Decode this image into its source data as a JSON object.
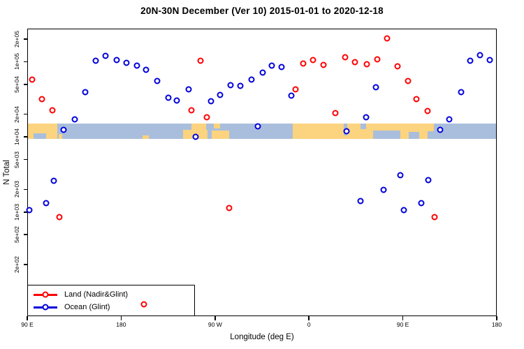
{
  "title": "20N-30N December (Ver 10)   2015-01-01 to 2020-12-18",
  "chart_data": {
    "type": "scatter",
    "title": "20N-30N December (Ver 10)   2015-01-01 to 2020-12-18",
    "xlabel": "Longitude (deg E)",
    "ylabel": "N Total",
    "x_axis": {
      "note": "t = degrees eastward along axis starting at 90E; axis wraps 90E to 180 to 90W to 0 to 90E to 180",
      "range_t": [
        0,
        450
      ],
      "ticks_t": [
        0,
        90,
        180,
        270,
        360,
        450
      ],
      "tick_labels": [
        "90 E",
        "180",
        "90 W",
        "0",
        "90 E",
        "180"
      ]
    },
    "y_axis": {
      "scale": "log",
      "range": [
        41,
        274000
      ],
      "tick_values": [
        200000,
        100000,
        50000,
        20000,
        10000,
        5000,
        2000,
        1000,
        500,
        200
      ],
      "tick_labels": [
        "2e+05",
        "1e+05",
        "5e+04",
        "2e+04",
        "1e+04",
        "5e+03",
        "2e+03",
        "1e+03",
        "5e+02",
        "2e+02"
      ]
    },
    "grid": "off",
    "legend_position": "bottom-left",
    "series": [
      {
        "name": "Land (Nadir&Glint)",
        "color": "#FF0000",
        "points_t_value": [
          [
            4.7,
            57900
          ],
          [
            14.3,
            32000
          ],
          [
            24.1,
            22400
          ],
          [
            30.8,
            857
          ],
          [
            111.8,
            59.2
          ],
          [
            157.4,
            22400
          ],
          [
            165.9,
            104000
          ],
          [
            171.9,
            18400
          ],
          [
            193.5,
            1130
          ],
          [
            256.9,
            42600
          ],
          [
            264.5,
            94600
          ],
          [
            274.1,
            106000
          ],
          [
            284.1,
            91300
          ],
          [
            295.3,
            20900
          ],
          [
            304.7,
            115000
          ],
          [
            314.1,
            98100
          ],
          [
            325.2,
            93200
          ],
          [
            335.3,
            108000
          ],
          [
            344.6,
            204000
          ],
          [
            354.7,
            86900
          ],
          [
            364.7,
            55500
          ],
          [
            373.2,
            32000
          ],
          [
            383.9,
            22000
          ],
          [
            390.6,
            863
          ]
        ]
      },
      {
        "name": "Ocean (Glint)",
        "color": "#0000DD",
        "points_t_value": [
          [
            2.0,
            1060
          ],
          [
            18.1,
            1320
          ],
          [
            25.2,
            2610
          ],
          [
            34.8,
            12400
          ],
          [
            45.3,
            17100
          ],
          [
            55.8,
            39600
          ],
          [
            65.4,
            102000
          ],
          [
            75.0,
            120000
          ],
          [
            85.5,
            106000
          ],
          [
            94.9,
            96700
          ],
          [
            105.2,
            88800
          ],
          [
            114.1,
            77600
          ],
          [
            124.6,
            55800
          ],
          [
            135.1,
            33200
          ],
          [
            143.5,
            30300
          ],
          [
            154.7,
            42600
          ],
          [
            161.4,
            10000
          ],
          [
            176.4,
            29800
          ],
          [
            184.9,
            36400
          ],
          [
            194.9,
            49100
          ],
          [
            204.5,
            48000
          ],
          [
            215.0,
            57500
          ],
          [
            221.0,
            13800
          ],
          [
            225.7,
            72100
          ],
          [
            234.6,
            88200
          ],
          [
            243.9,
            85600
          ],
          [
            253.3,
            35600
          ],
          [
            306.1,
            11900
          ],
          [
            319.2,
            1410
          ],
          [
            324.6,
            18400
          ],
          [
            334.1,
            45700
          ],
          [
            341.5,
            1990
          ],
          [
            357.8,
            3090
          ],
          [
            360.7,
            1050
          ],
          [
            377.4,
            1320
          ],
          [
            384.6,
            2640
          ],
          [
            395.8,
            12400
          ],
          [
            404.5,
            17100
          ],
          [
            415.6,
            39100
          ],
          [
            424.5,
            102000
          ],
          [
            433.9,
            122000
          ],
          [
            443.4,
            106000
          ]
        ]
      }
    ],
    "map_band": {
      "description": "world coastline strip for 20N-30N drawn across plot",
      "value_top": 15000,
      "value_bottom": 9400,
      "ocean_color": "#A9BEDC",
      "land_color": "#FCD37E",
      "segments": [
        {
          "type": "land",
          "t0": 0.0,
          "t1": 28.8,
          "anchor": "full",
          "frac": 1.0
        },
        {
          "type": "ocean",
          "t0": 6.0,
          "t1": 18.1,
          "anchor": "bottom",
          "frac": 0.35
        },
        {
          "type": "land",
          "t0": 30.1,
          "t1": 33.5,
          "anchor": "bottom",
          "frac": 0.3
        },
        {
          "type": "land",
          "t0": 110.5,
          "t1": 116.5,
          "anchor": "bottom",
          "frac": 0.25
        },
        {
          "type": "land",
          "t0": 157.3,
          "t1": 171.4,
          "anchor": "top",
          "frac": 0.45
        },
        {
          "type": "land",
          "t0": 149.3,
          "t1": 172.7,
          "anchor": "bottom",
          "frac": 0.6
        },
        {
          "type": "land",
          "t0": 178.5,
          "t1": 185.0,
          "anchor": "top",
          "frac": 0.3
        },
        {
          "type": "land",
          "t0": 176.8,
          "t1": 193.5,
          "anchor": "bottom",
          "frac": 0.55
        },
        {
          "type": "land",
          "t0": 254.4,
          "t1": 389.7,
          "anchor": "full",
          "frac": 1.0
        },
        {
          "type": "ocean",
          "t0": 303.3,
          "t1": 306.7,
          "anchor": "top",
          "frac": 0.75
        },
        {
          "type": "ocean",
          "t0": 319.4,
          "t1": 324.7,
          "anchor": "top",
          "frac": 0.35
        },
        {
          "type": "ocean",
          "t0": 331.4,
          "t1": 357.5,
          "anchor": "bottom",
          "frac": 0.55
        },
        {
          "type": "ocean",
          "t0": 365.6,
          "t1": 375.6,
          "anchor": "bottom",
          "frac": 0.45
        },
        {
          "type": "ocean",
          "t0": 383.6,
          "t1": 389.7,
          "anchor": "bottom",
          "frac": 0.5
        }
      ]
    }
  },
  "legend": {
    "items": [
      {
        "label": "Land (Nadir&Glint)",
        "color": "#FF0000"
      },
      {
        "label": "Ocean (Glint)",
        "color": "#0000DD"
      }
    ]
  }
}
